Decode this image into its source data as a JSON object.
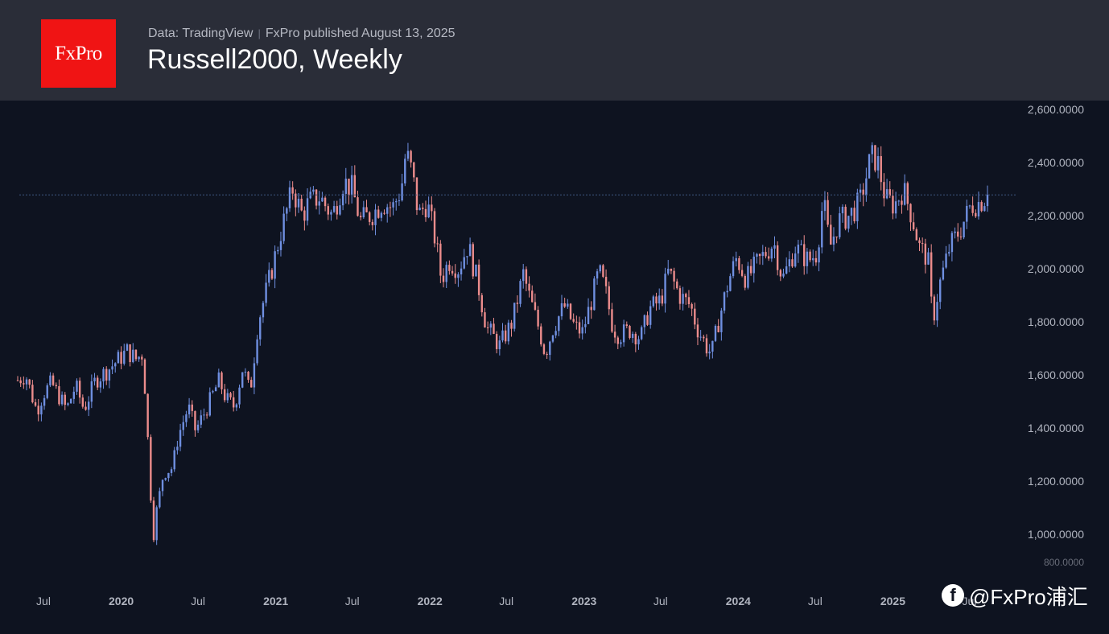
{
  "header": {
    "logo_text": "FxPro",
    "source": "Data: TradingView",
    "published": "FxPro published August 13, 2025",
    "title": "Russell2000, Weekly"
  },
  "watermark": "@FxPro浦汇",
  "colors": {
    "background": "#0e1320",
    "header_bg": "#2a2d38",
    "logo_red": "#f01414",
    "up_candle": "#6f8fe0",
    "down_candle": "#ec8c8c",
    "axis_text": "#b0b4bf",
    "price_line": "#3e5680"
  },
  "chart_data": {
    "type": "candlestick",
    "title": "Russell2000, Weekly",
    "interval": "weekly",
    "x_range": [
      "2019-05-01",
      "2025-08-13"
    ],
    "ylim": [
      880,
      2620
    ],
    "y_ticks": [
      1000,
      1200,
      1400,
      1600,
      1800,
      2000,
      2200,
      2400,
      2600
    ],
    "y_tick_labels": [
      "1,000.0000",
      "1,200.0000",
      "1,400.0000",
      "1,600.0000",
      "1,800.0000",
      "2,000.0000",
      "2,200.0000",
      "2,400.0000",
      "2,600.0000"
    ],
    "y_tick_partial": "800.0000",
    "x_tick_labels": [
      {
        "date": "2019-07-01",
        "label": "Jul"
      },
      {
        "date": "2020-01-01",
        "label": "2020"
      },
      {
        "date": "2020-07-01",
        "label": "Jul"
      },
      {
        "date": "2021-01-01",
        "label": "2021"
      },
      {
        "date": "2021-07-01",
        "label": "Jul"
      },
      {
        "date": "2022-01-01",
        "label": "2022"
      },
      {
        "date": "2022-07-01",
        "label": "Jul"
      },
      {
        "date": "2023-01-01",
        "label": "2023"
      },
      {
        "date": "2023-07-01",
        "label": "Jul"
      },
      {
        "date": "2024-01-01",
        "label": "2024"
      },
      {
        "date": "2024-07-01",
        "label": "Jul"
      },
      {
        "date": "2025-01-01",
        "label": "2025"
      },
      {
        "date": "2025-07-01",
        "label": "Jul"
      }
    ],
    "current_price": 2278,
    "close_path": [
      [
        "2019-05-01",
        1580
      ],
      [
        "2019-05-20",
        1600
      ],
      [
        "2019-06-05",
        1515
      ],
      [
        "2019-06-15",
        1465
      ],
      [
        "2019-07-01",
        1530
      ],
      [
        "2019-07-20",
        1570
      ],
      [
        "2019-08-10",
        1510
      ],
      [
        "2019-08-25",
        1470
      ],
      [
        "2019-09-15",
        1560
      ],
      [
        "2019-10-05",
        1470
      ],
      [
        "2019-11-01",
        1580
      ],
      [
        "2019-12-01",
        1620
      ],
      [
        "2020-01-15",
        1690
      ],
      [
        "2020-02-05",
        1660
      ],
      [
        "2020-02-20",
        1680
      ],
      [
        "2020-03-01",
        1470
      ],
      [
        "2020-03-08",
        1210
      ],
      [
        "2020-03-18",
        1000
      ],
      [
        "2020-03-25",
        1090
      ],
      [
        "2020-04-10",
        1230
      ],
      [
        "2020-05-01",
        1250
      ],
      [
        "2020-05-15",
        1370
      ],
      [
        "2020-06-08",
        1480
      ],
      [
        "2020-06-25",
        1390
      ],
      [
        "2020-07-20",
        1470
      ],
      [
        "2020-08-20",
        1580
      ],
      [
        "2020-09-05",
        1510
      ],
      [
        "2020-09-25",
        1480
      ],
      [
        "2020-10-15",
        1630
      ],
      [
        "2020-11-01",
        1530
      ],
      [
        "2020-11-20",
        1800
      ],
      [
        "2020-12-20",
        1980
      ],
      [
        "2021-01-15",
        2150
      ],
      [
        "2021-02-10",
        2300
      ],
      [
        "2021-03-05",
        2200
      ],
      [
        "2021-03-20",
        2250
      ],
      [
        "2021-04-15",
        2270
      ],
      [
        "2021-05-15",
        2200
      ],
      [
        "2021-06-10",
        2330
      ],
      [
        "2021-07-01",
        2300
      ],
      [
        "2021-07-20",
        2180
      ],
      [
        "2021-08-20",
        2210
      ],
      [
        "2021-09-10",
        2250
      ],
      [
        "2021-10-05",
        2230
      ],
      [
        "2021-10-25",
        2300
      ],
      [
        "2021-11-05",
        2440
      ],
      [
        "2021-11-20",
        2360
      ],
      [
        "2021-12-05",
        2200
      ],
      [
        "2021-12-25",
        2250
      ],
      [
        "2022-01-15",
        2100
      ],
      [
        "2022-01-28",
        1960
      ],
      [
        "2022-02-15",
        2030
      ],
      [
        "2022-03-10",
        2000
      ],
      [
        "2022-04-01",
        2090
      ],
      [
        "2022-04-25",
        1940
      ],
      [
        "2022-05-15",
        1780
      ],
      [
        "2022-06-15",
        1710
      ],
      [
        "2022-07-15",
        1800
      ],
      [
        "2022-08-10",
        1980
      ],
      [
        "2022-08-25",
        1890
      ],
      [
        "2022-09-15",
        1780
      ],
      [
        "2022-10-01",
        1680
      ],
      [
        "2022-10-20",
        1780
      ],
      [
        "2022-11-15",
        1860
      ],
      [
        "2022-12-10",
        1780
      ],
      [
        "2022-12-28",
        1760
      ],
      [
        "2023-01-20",
        1890
      ],
      [
        "2023-02-05",
        1990
      ],
      [
        "2023-02-20",
        1920
      ],
      [
        "2023-03-10",
        1780
      ],
      [
        "2023-03-25",
        1750
      ],
      [
        "2023-04-20",
        1770
      ],
      [
        "2023-05-15",
        1740
      ],
      [
        "2023-06-05",
        1850
      ],
      [
        "2023-07-01",
        1880
      ],
      [
        "2023-07-20",
        1990
      ],
      [
        "2023-08-15",
        1900
      ],
      [
        "2023-09-10",
        1860
      ],
      [
        "2023-09-25",
        1780
      ],
      [
        "2023-10-20",
        1700
      ],
      [
        "2023-10-30",
        1680
      ],
      [
        "2023-11-15",
        1800
      ],
      [
        "2023-12-10",
        1960
      ],
      [
        "2023-12-28",
        2040
      ],
      [
        "2024-01-20",
        1960
      ],
      [
        "2024-02-15",
        2020
      ],
      [
        "2024-03-25",
        2100
      ],
      [
        "2024-04-15",
        1960
      ],
      [
        "2024-05-15",
        2080
      ],
      [
        "2024-06-15",
        2030
      ],
      [
        "2024-07-05",
        2060
      ],
      [
        "2024-07-20",
        2260
      ],
      [
        "2024-08-05",
        2080
      ],
      [
        "2024-08-25",
        2180
      ],
      [
        "2024-09-20",
        2200
      ],
      [
        "2024-10-15",
        2250
      ],
      [
        "2024-11-10",
        2420
      ],
      [
        "2024-11-25",
        2410
      ],
      [
        "2024-12-15",
        2260
      ],
      [
        "2025-01-05",
        2240
      ],
      [
        "2025-01-25",
        2300
      ],
      [
        "2025-02-15",
        2200
      ],
      [
        "2025-03-05",
        2080
      ],
      [
        "2025-03-25",
        2040
      ],
      [
        "2025-04-05",
        1800
      ],
      [
        "2025-04-20",
        1930
      ],
      [
        "2025-05-15",
        2080
      ],
      [
        "2025-06-10",
        2150
      ],
      [
        "2025-07-05",
        2240
      ],
      [
        "2025-07-25",
        2250
      ],
      [
        "2025-08-13",
        2278
      ]
    ]
  }
}
